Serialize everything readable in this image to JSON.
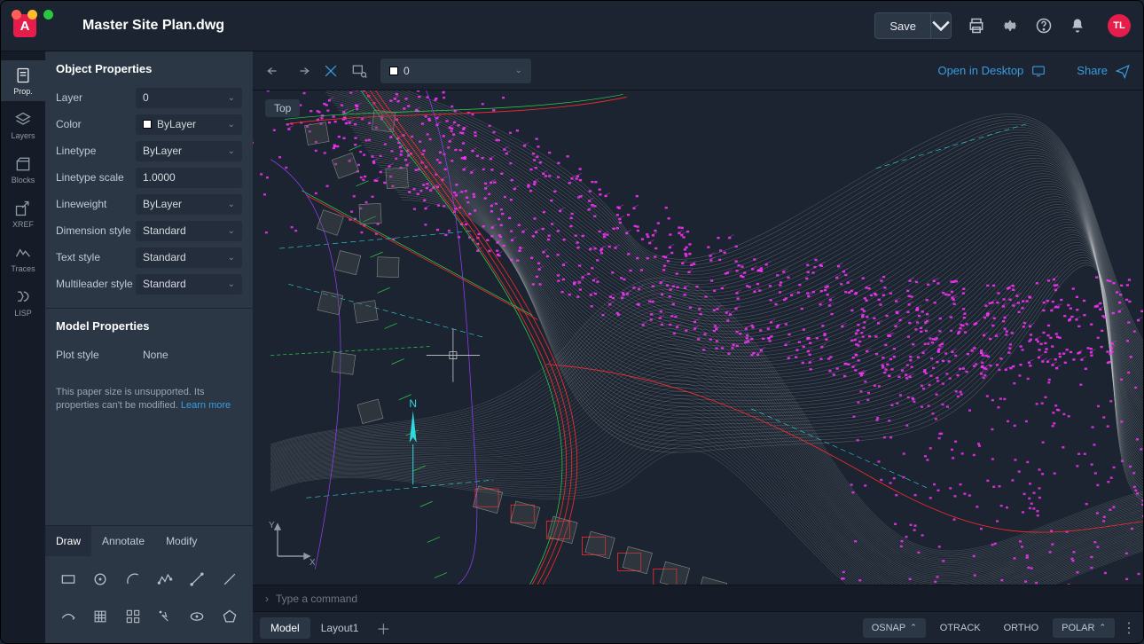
{
  "window": {
    "app_letter": "A",
    "filename": "Master Site Plan.dwg",
    "save_label": "Save",
    "avatar": "TL"
  },
  "rail": [
    {
      "id": "prop",
      "label": "Prop."
    },
    {
      "id": "layers",
      "label": "Layers"
    },
    {
      "id": "blocks",
      "label": "Blocks"
    },
    {
      "id": "xref",
      "label": "XREF"
    },
    {
      "id": "traces",
      "label": "Traces"
    },
    {
      "id": "lisp",
      "label": "LISP"
    }
  ],
  "panel": {
    "object_header": "Object Properties",
    "model_header": "Model Properties",
    "rows": {
      "layer": {
        "label": "Layer",
        "value": "0"
      },
      "color": {
        "label": "Color",
        "value": "ByLayer"
      },
      "linetype": {
        "label": "Linetype",
        "value": "ByLayer"
      },
      "linescale": {
        "label": "Linetype scale",
        "value": "1.0000"
      },
      "lineweight": {
        "label": "Lineweight",
        "value": "ByLayer"
      },
      "dimstyle": {
        "label": "Dimension style",
        "value": "Standard"
      },
      "textstyle": {
        "label": "Text style",
        "value": "Standard"
      },
      "mleader": {
        "label": "Multileader style",
        "value": "Standard"
      },
      "plotstyle": {
        "label": "Plot style",
        "value": "None"
      }
    },
    "unsupported_text": "This paper size is unsupported. Its properties can't be modified. ",
    "unsupported_link": "Learn more"
  },
  "tool_tabs": [
    "Draw",
    "Annotate",
    "Modify"
  ],
  "canvas_toolbar": {
    "layer_value": "0",
    "open_desktop": "Open in Desktop",
    "share": "Share"
  },
  "canvas": {
    "view_label": "Top",
    "compass_n": "N",
    "ucs_x": "X",
    "ucs_y": "Y",
    "background": "#1b2430",
    "colors": {
      "contour": "#c5c8cc",
      "magenta": "#ff33ff",
      "red": "#ff2b2b",
      "green": "#2bd44a",
      "cyan": "#2fd8e0",
      "blue": "#2a5bff",
      "yellow": "#e0c43a",
      "purple": "#9a3fff"
    }
  },
  "cmd": {
    "prompt": "Type a command"
  },
  "layout_tabs": [
    "Model",
    "Layout1"
  ],
  "status": {
    "osnap": "OSNAP",
    "otrack": "OTRACK",
    "ortho": "ORTHO",
    "polar": "POLAR"
  }
}
